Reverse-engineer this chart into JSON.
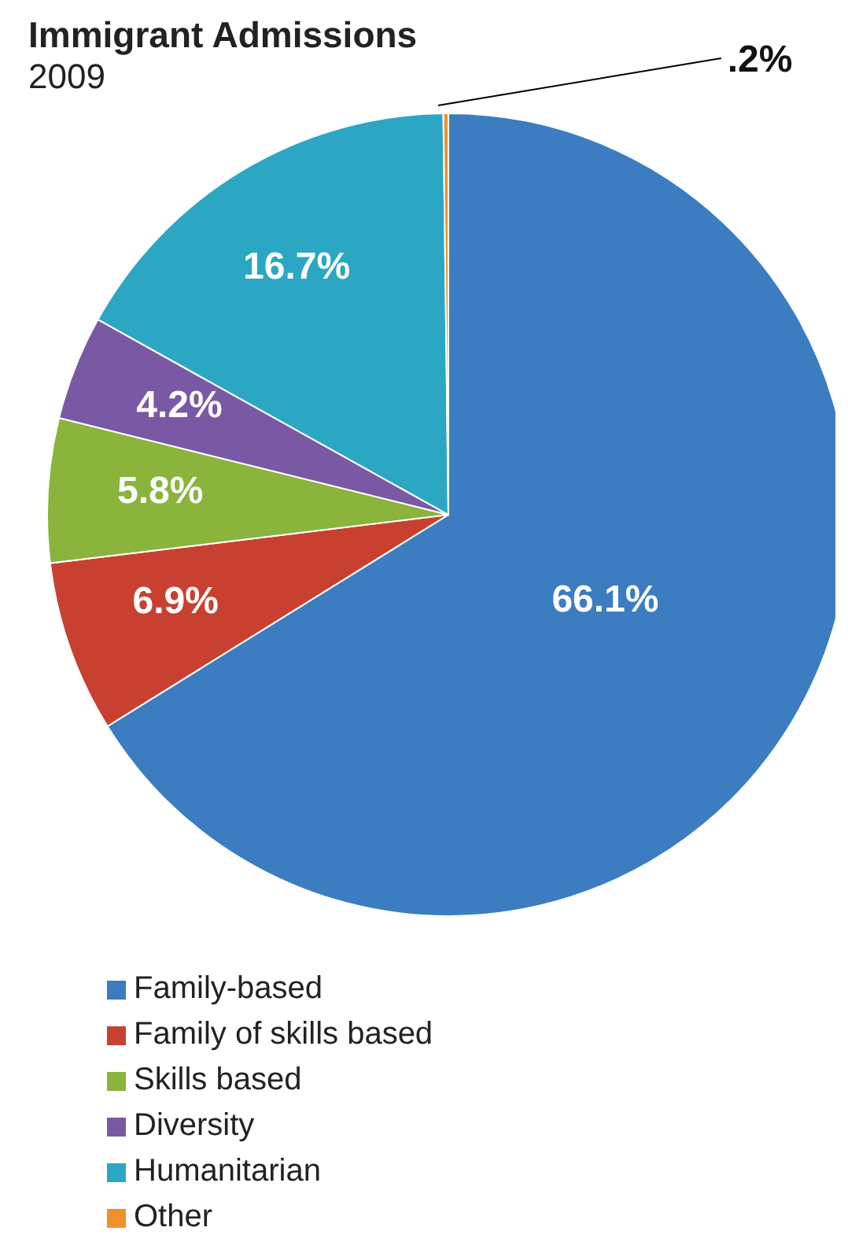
{
  "chart_data": {
    "type": "pie",
    "title": "Immigrant Admissions",
    "subtitle": "2009",
    "categories": [
      "Family-based",
      "Family of skills based",
      "Skills based",
      "Diversity",
      "Humanitarian",
      "Other"
    ],
    "values": [
      66.1,
      6.9,
      5.8,
      4.2,
      16.7,
      0.2
    ],
    "value_labels": [
      "66.1%",
      "6.9%",
      "5.8%",
      "4.2%",
      "16.7%",
      ".2%"
    ],
    "colors": [
      "#3b7dc0",
      "#c84130",
      "#8ab43c",
      "#7a59a4",
      "#2ba7c4",
      "#f0902a"
    ],
    "legend": "bottom left"
  }
}
